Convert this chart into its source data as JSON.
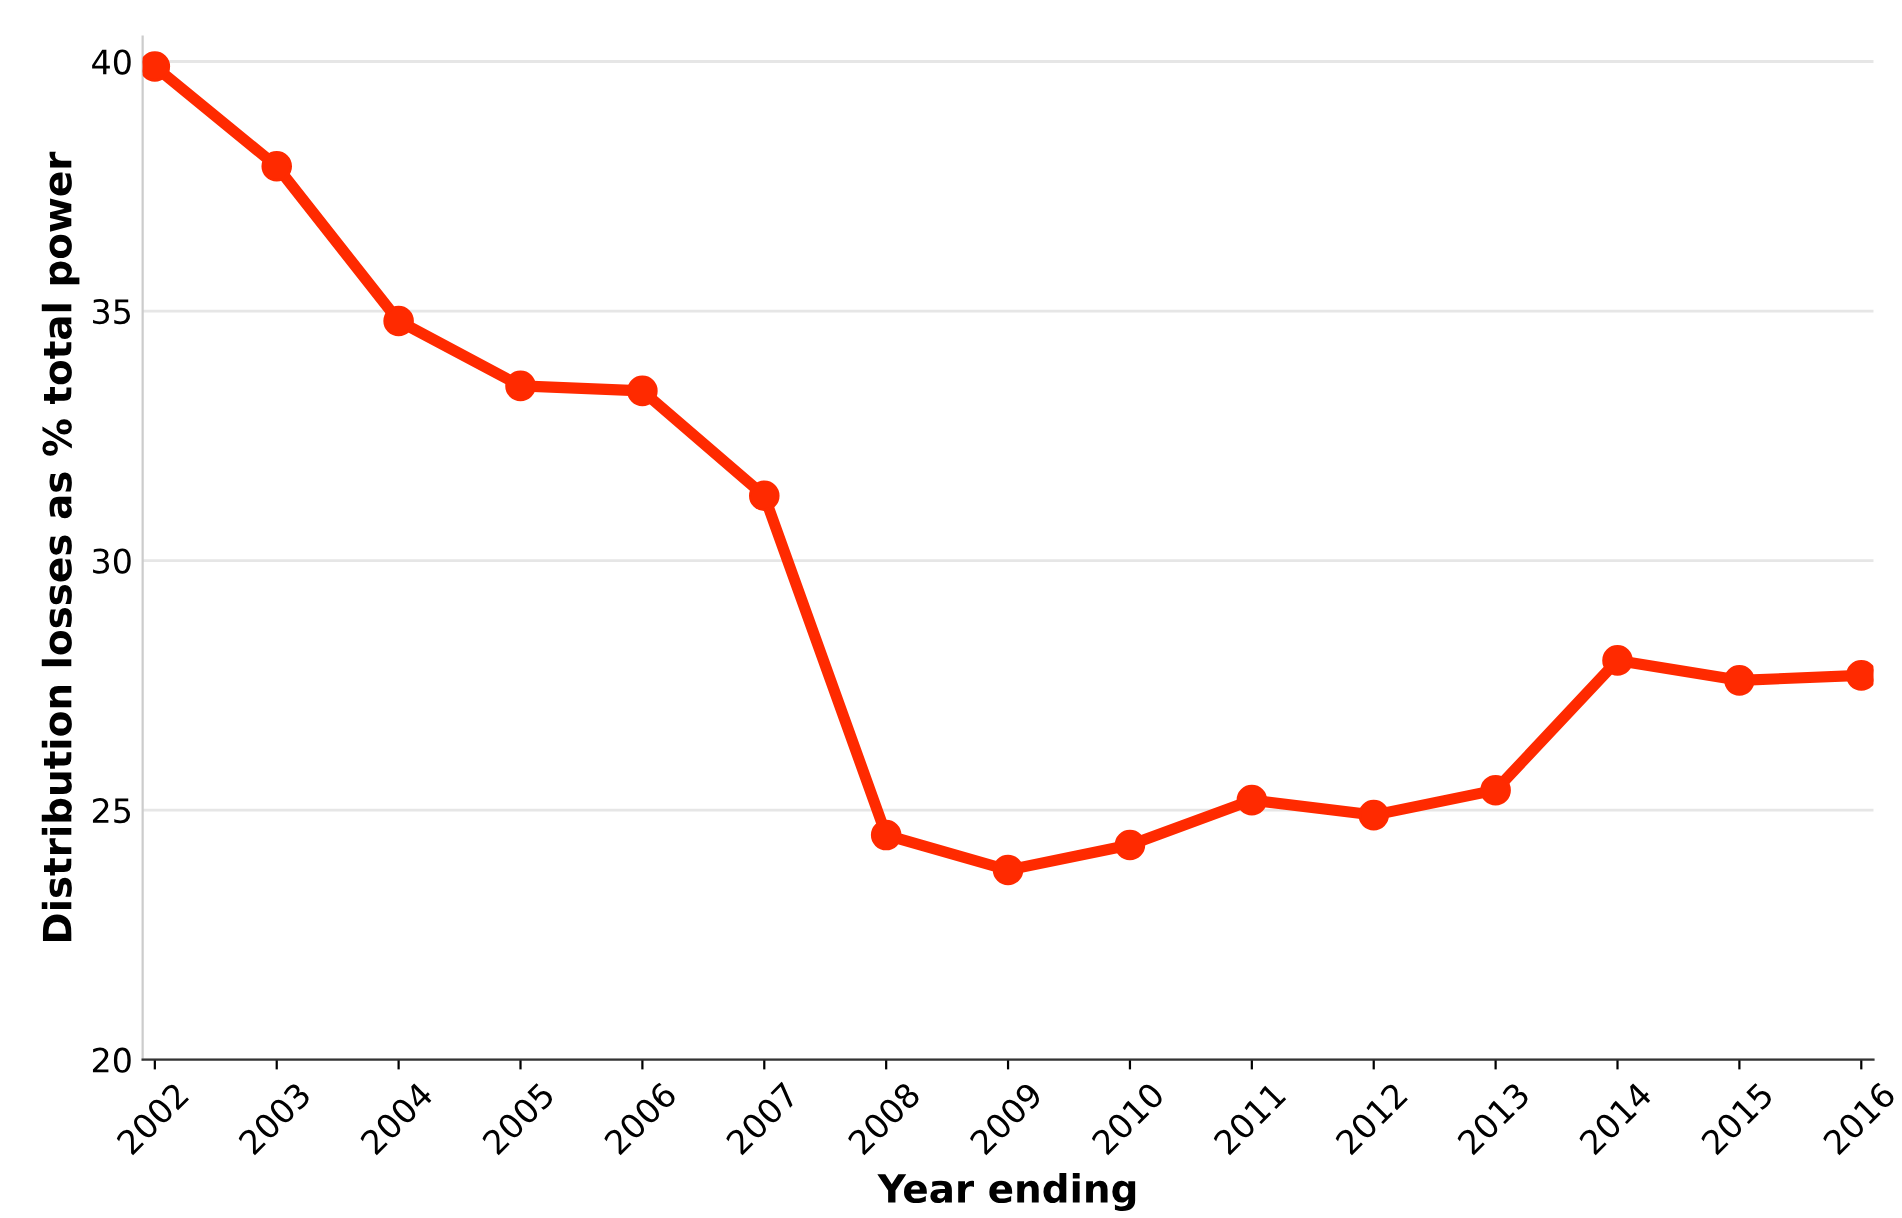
{
  "chart_data": {
    "type": "line",
    "xlabel": "Year ending",
    "ylabel": "Distribution losses as % total power",
    "categories": [
      "2002",
      "2003",
      "2004",
      "2005",
      "2006",
      "2007",
      "2008",
      "2009",
      "2010",
      "2011",
      "2012",
      "2013",
      "2014",
      "2015",
      "2016"
    ],
    "series": [
      {
        "color": "#ff2a00",
        "values": [
          39.9,
          37.9,
          34.8,
          33.5,
          33.4,
          31.3,
          24.5,
          23.8,
          24.3,
          25.2,
          24.9,
          25.4,
          28.0,
          27.6,
          27.7
        ]
      }
    ],
    "ylim": [
      20,
      40.5
    ],
    "yticks": [
      20,
      25,
      30,
      35,
      40
    ],
    "grid": "y",
    "marker": "circle",
    "line_style": "solid"
  }
}
